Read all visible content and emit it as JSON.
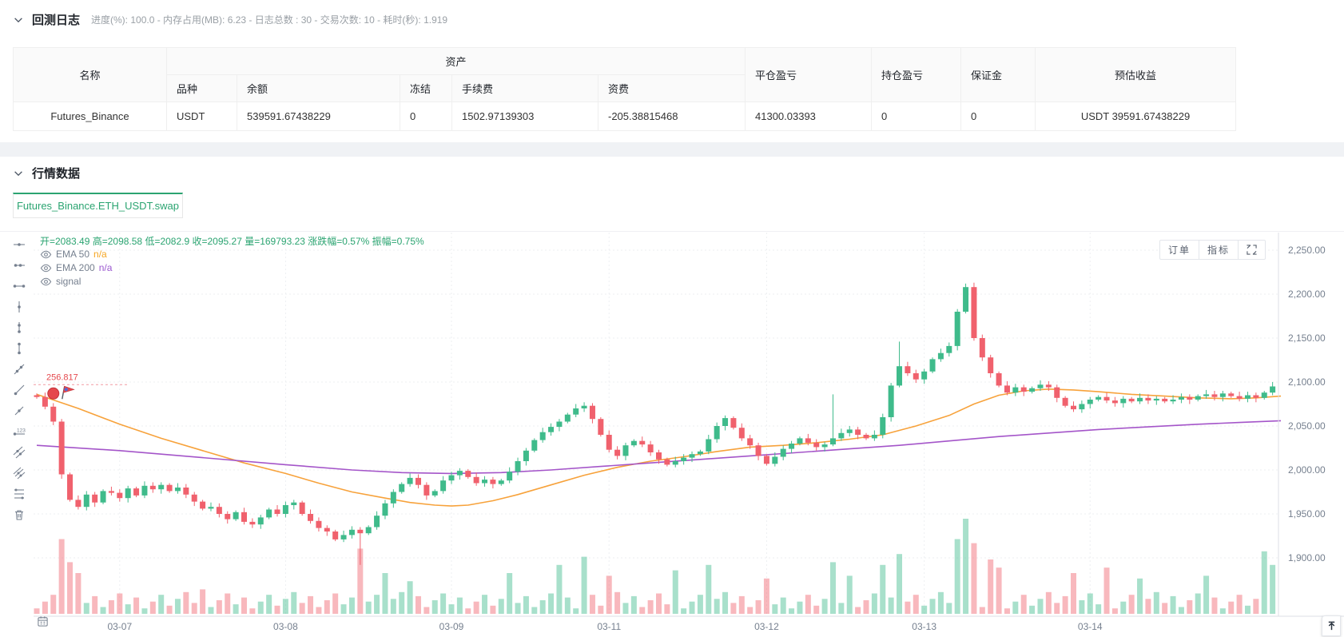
{
  "backtest_log": {
    "title": "回测日志",
    "stats": "进度(%): 100.0  - 内存占用(MB): 6.23 - 日志总数 : 30 - 交易次数: 10 - 耗时(秒): 1.919",
    "table": {
      "col_name": "名称",
      "col_assets": "资产",
      "col_variety": "品种",
      "col_balance": "余额",
      "col_frozen": "冻结",
      "col_fee": "手续费",
      "col_funding": "资费",
      "col_closed_pnl": "平仓盈亏",
      "col_position_pnl": "持仓盈亏",
      "col_margin": "保证金",
      "col_est_profit": "预估收益",
      "row": {
        "name": "Futures_Binance",
        "variety": "USDT",
        "balance": "539591.67438229",
        "frozen": "0",
        "fee": "1502.97139303",
        "funding": "-205.38815468",
        "closed_pnl": "41300.03393",
        "position_pnl": "0",
        "margin": "0",
        "est_profit": "USDT 39591.67438229"
      }
    }
  },
  "market_data": {
    "title": "行情数据",
    "tab": "Futures_Binance.ETH_USDT.swap",
    "orders_button": "订单",
    "indicators_button": "指标",
    "legend_ohlc": "开=2083.49 高=2098.58 低=2082.9 收=2095.27 量=169793.23 涨跌幅=0.57% 振幅=0.75%",
    "indicators": [
      {
        "name": "EMA 50",
        "value": "n/a"
      },
      {
        "name": "EMA 200",
        "value": "n/a"
      },
      {
        "name": "signal",
        "value": ""
      }
    ]
  },
  "chart_data": {
    "type": "candlestick",
    "symbol": "Futures_Binance.ETH_USDT.swap",
    "title": "Futures_Binance.ETH_USDT.swap 行情K线",
    "ylim": [
      1880,
      2255
    ],
    "grid": true,
    "y_ticks": [
      {
        "label": "2,250.00",
        "price": 2250
      },
      {
        "label": "2,200.00",
        "price": 2200
      },
      {
        "label": "2,150.00",
        "price": 2150
      },
      {
        "label": "2,100.00",
        "price": 2100
      },
      {
        "label": "2,050.00",
        "price": 2050
      },
      {
        "label": "2,000.00",
        "price": 2000
      },
      {
        "label": "1,950.00",
        "price": 1950
      },
      {
        "label": "1,900.00",
        "price": 1900
      }
    ],
    "x_ticks": [
      {
        "label": "03-07",
        "index": 10
      },
      {
        "label": "03-08",
        "index": 30
      },
      {
        "label": "03-09",
        "index": 50
      },
      {
        "label": "03-11",
        "index": 69
      },
      {
        "label": "03-12",
        "index": 88
      },
      {
        "label": "03-13",
        "index": 107
      },
      {
        "label": "03-14",
        "index": 127
      }
    ],
    "first_open": 2085,
    "closes": [
      2083,
      2072,
      2055,
      1995,
      1966,
      1958,
      1972,
      1963,
      1976,
      1974,
      1968,
      1979,
      1971,
      1982,
      1978,
      1983,
      1976,
      1980,
      1972,
      1964,
      1956,
      1958,
      1950,
      1944,
      1952,
      1941,
      1938,
      1946,
      1955,
      1950,
      1960,
      1963,
      1950,
      1942,
      1934,
      1930,
      1921,
      1926,
      1932,
      1928,
      1935,
      1948,
      1962,
      1975,
      1984,
      1991,
      1983,
      1971,
      1976,
      1988,
      1994,
      1999,
      1992,
      1985,
      1989,
      1984,
      1988,
      1998,
      2010,
      2022,
      2034,
      2043,
      2049,
      2055,
      2063,
      2070,
      2073,
      2058,
      2040,
      2023,
      2016,
      2028,
      2033,
      2029,
      2020,
      2012,
      2006,
      2010,
      2014,
      2018,
      2021,
      2035,
      2050,
      2059,
      2048,
      2036,
      2028,
      2016,
      2007,
      2015,
      2024,
      2030,
      2036,
      2031,
      2026,
      2029,
      2036,
      2042,
      2046,
      2040,
      2036,
      2040,
      2060,
      2096,
      2118,
      2110,
      2103,
      2112,
      2126,
      2133,
      2141,
      2180,
      2208,
      2150,
      2128,
      2110,
      2096,
      2088,
      2094,
      2089,
      2093,
      2097,
      2094,
      2082,
      2073,
      2069,
      2075,
      2080,
      2083,
      2079,
      2076,
      2081,
      2078,
      2082,
      2079,
      2081,
      2078,
      2080,
      2083,
      2080,
      2084,
      2086,
      2083,
      2087,
      2084,
      2081,
      2085,
      2082,
      2088,
      2095
    ],
    "volumes": [
      4,
      9,
      14,
      55,
      38,
      30,
      8,
      13,
      5,
      10,
      15,
      7,
      12,
      4,
      9,
      14,
      6,
      11,
      16,
      8,
      18,
      5,
      10,
      15,
      7,
      12,
      4,
      9,
      14,
      6,
      11,
      16,
      8,
      13,
      5,
      10,
      15,
      7,
      12,
      48,
      9,
      14,
      30,
      11,
      16,
      24,
      13,
      5,
      10,
      15,
      7,
      12,
      4,
      9,
      14,
      6,
      11,
      30,
      8,
      13,
      5,
      10,
      15,
      36,
      12,
      4,
      42,
      14,
      6,
      28,
      16,
      8,
      13,
      5,
      10,
      15,
      7,
      32,
      4,
      9,
      14,
      36,
      11,
      16,
      8,
      13,
      5,
      10,
      26,
      7,
      12,
      4,
      9,
      14,
      6,
      11,
      38,
      8,
      28,
      5,
      10,
      15,
      36,
      12,
      44,
      9,
      14,
      6,
      11,
      16,
      8,
      55,
      70,
      52,
      5,
      40,
      34,
      4,
      9,
      14,
      6,
      11,
      16,
      8,
      13,
      30,
      10,
      15,
      7,
      34,
      4,
      9,
      14,
      26,
      11,
      16,
      8,
      13,
      5,
      10,
      15,
      28,
      12,
      4,
      9,
      14,
      6,
      11,
      46,
      36
    ],
    "wick_overrides": {
      "39": {
        "low": 1892
      },
      "96": {
        "high": 2086
      },
      "104": {
        "high": 2146
      },
      "112": {
        "high": 2212
      }
    },
    "series": [
      {
        "name": "EMA 50",
        "type": "line",
        "color_key": "ema50",
        "points": [
          [
            0,
            2086
          ],
          [
            5,
            2070
          ],
          [
            10,
            2052
          ],
          [
            15,
            2036
          ],
          [
            20,
            2022
          ],
          [
            25,
            2008
          ],
          [
            30,
            1996
          ],
          [
            34,
            1985
          ],
          [
            38,
            1975
          ],
          [
            42,
            1968
          ],
          [
            45,
            1963
          ],
          [
            48,
            1960
          ],
          [
            50,
            1959
          ],
          [
            52,
            1960
          ],
          [
            55,
            1965
          ],
          [
            58,
            1972
          ],
          [
            62,
            1983
          ],
          [
            66,
            1994
          ],
          [
            70,
            2003
          ],
          [
            74,
            2010
          ],
          [
            78,
            2015
          ],
          [
            82,
            2021
          ],
          [
            86,
            2026
          ],
          [
            90,
            2028
          ],
          [
            94,
            2031
          ],
          [
            98,
            2035
          ],
          [
            102,
            2040
          ],
          [
            106,
            2050
          ],
          [
            110,
            2062
          ],
          [
            113,
            2075
          ],
          [
            116,
            2085
          ],
          [
            119,
            2090
          ],
          [
            122,
            2092
          ],
          [
            125,
            2091
          ],
          [
            128,
            2089
          ],
          [
            132,
            2086
          ],
          [
            136,
            2084
          ],
          [
            140,
            2082
          ],
          [
            144,
            2081
          ],
          [
            147,
            2082
          ],
          [
            150,
            2084
          ]
        ]
      },
      {
        "name": "EMA 200",
        "type": "line",
        "color_key": "ema200",
        "points": [
          [
            0,
            2028
          ],
          [
            10,
            2022
          ],
          [
            20,
            2014
          ],
          [
            30,
            2006
          ],
          [
            38,
            2000
          ],
          [
            44,
            1997
          ],
          [
            50,
            1996
          ],
          [
            56,
            1997
          ],
          [
            62,
            2000
          ],
          [
            68,
            2004
          ],
          [
            74,
            2008
          ],
          [
            80,
            2012
          ],
          [
            86,
            2016
          ],
          [
            92,
            2020
          ],
          [
            98,
            2024
          ],
          [
            104,
            2028
          ],
          [
            110,
            2033
          ],
          [
            116,
            2038
          ],
          [
            122,
            2042
          ],
          [
            128,
            2046
          ],
          [
            134,
            2049
          ],
          [
            140,
            2052
          ],
          [
            145,
            2054
          ],
          [
            150,
            2056
          ]
        ]
      }
    ],
    "marker": {
      "label": "256.817",
      "index": 2,
      "dot_price": 2087,
      "line_price": 2097
    },
    "colors": {
      "up": "#3fbb8b",
      "down": "#f0616d",
      "ema50": "#f7a23b",
      "ema200": "#a455c9",
      "grid": "#edeff2",
      "axis": "#dcdfe6",
      "text": "#76808f",
      "marker": "#e5484d",
      "marker_line": "#f19aa2",
      "legend_green": "#2ba471"
    }
  }
}
